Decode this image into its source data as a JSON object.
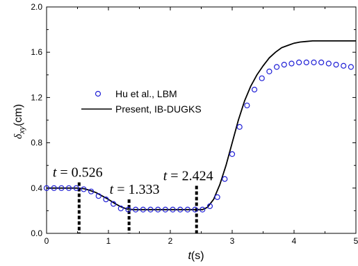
{
  "colors": {
    "marker": "#1f1fd6",
    "line": "#000000",
    "axis": "#000000",
    "annotation": "#000000"
  },
  "chart_data": {
    "type": "line",
    "title": "",
    "xlabel": {
      "italic": "t",
      "rest": "(s)"
    },
    "ylabel": {
      "symbol": "δ",
      "sub": "xy",
      "rest": "(cm)"
    },
    "xlim": [
      0,
      5
    ],
    "ylim": [
      0.0,
      2.0
    ],
    "xticks": [
      0,
      1,
      2,
      3,
      4,
      5
    ],
    "xtick_labels": [
      "0",
      "1",
      "2",
      "3",
      "4",
      "5"
    ],
    "yticks": [
      0.0,
      0.4,
      0.8,
      1.2,
      1.6,
      2.0
    ],
    "ytick_labels": [
      "0.0",
      "0.4",
      "0.8",
      "1.2",
      "1.6",
      "2.0"
    ],
    "grid": false,
    "legend_position": "upper-left",
    "series": [
      {
        "name": "Hu et al., LBM",
        "kind": "scatter",
        "marker": "open-circle",
        "x": [
          0.0,
          0.12,
          0.24,
          0.36,
          0.48,
          0.6,
          0.72,
          0.84,
          0.96,
          1.08,
          1.2,
          1.32,
          1.44,
          1.56,
          1.68,
          1.8,
          1.92,
          2.04,
          2.16,
          2.28,
          2.4,
          2.52,
          2.64,
          2.76,
          2.88,
          3.0,
          3.12,
          3.24,
          3.36,
          3.48,
          3.6,
          3.72,
          3.84,
          3.96,
          4.08,
          4.2,
          4.32,
          4.44,
          4.56,
          4.68,
          4.8,
          4.92
        ],
        "y": [
          0.4,
          0.4,
          0.4,
          0.4,
          0.4,
          0.39,
          0.37,
          0.33,
          0.3,
          0.26,
          0.22,
          0.21,
          0.21,
          0.21,
          0.21,
          0.21,
          0.21,
          0.21,
          0.21,
          0.21,
          0.21,
          0.21,
          0.24,
          0.32,
          0.48,
          0.7,
          0.94,
          1.13,
          1.27,
          1.37,
          1.43,
          1.47,
          1.49,
          1.5,
          1.51,
          1.51,
          1.51,
          1.51,
          1.5,
          1.49,
          1.48,
          1.47
        ]
      },
      {
        "name": "Present, IB-DUGKS",
        "kind": "line",
        "x": [
          0.0,
          0.3,
          0.5,
          0.6,
          0.7,
          0.8,
          0.9,
          1.0,
          1.1,
          1.2,
          1.3,
          1.4,
          1.6,
          1.8,
          2.0,
          2.2,
          2.4,
          2.52,
          2.6,
          2.7,
          2.8,
          2.9,
          3.0,
          3.1,
          3.2,
          3.3,
          3.4,
          3.5,
          3.6,
          3.7,
          3.8,
          3.9,
          4.0,
          4.1,
          4.2,
          4.3,
          4.4,
          4.5,
          4.6,
          4.7,
          4.8,
          4.9,
          5.0
        ],
        "y": [
          0.4,
          0.4,
          0.4,
          0.395,
          0.38,
          0.36,
          0.33,
          0.3,
          0.265,
          0.235,
          0.215,
          0.21,
          0.21,
          0.21,
          0.21,
          0.21,
          0.21,
          0.21,
          0.23,
          0.3,
          0.43,
          0.6,
          0.8,
          1.0,
          1.17,
          1.3,
          1.4,
          1.48,
          1.55,
          1.6,
          1.64,
          1.66,
          1.68,
          1.69,
          1.695,
          1.7,
          1.7,
          1.7,
          1.7,
          1.7,
          1.7,
          1.7,
          1.7
        ]
      }
    ],
    "annotations": [
      {
        "label": "t",
        "text": " = 0.526",
        "x": 0.526,
        "y_top": 0.45
      },
      {
        "label": "t",
        "text": " = 1.333",
        "x": 1.333,
        "y_top": 0.3
      },
      {
        "label": "t",
        "text": " = 2.424",
        "x": 2.424,
        "y_top": 0.42
      }
    ]
  }
}
